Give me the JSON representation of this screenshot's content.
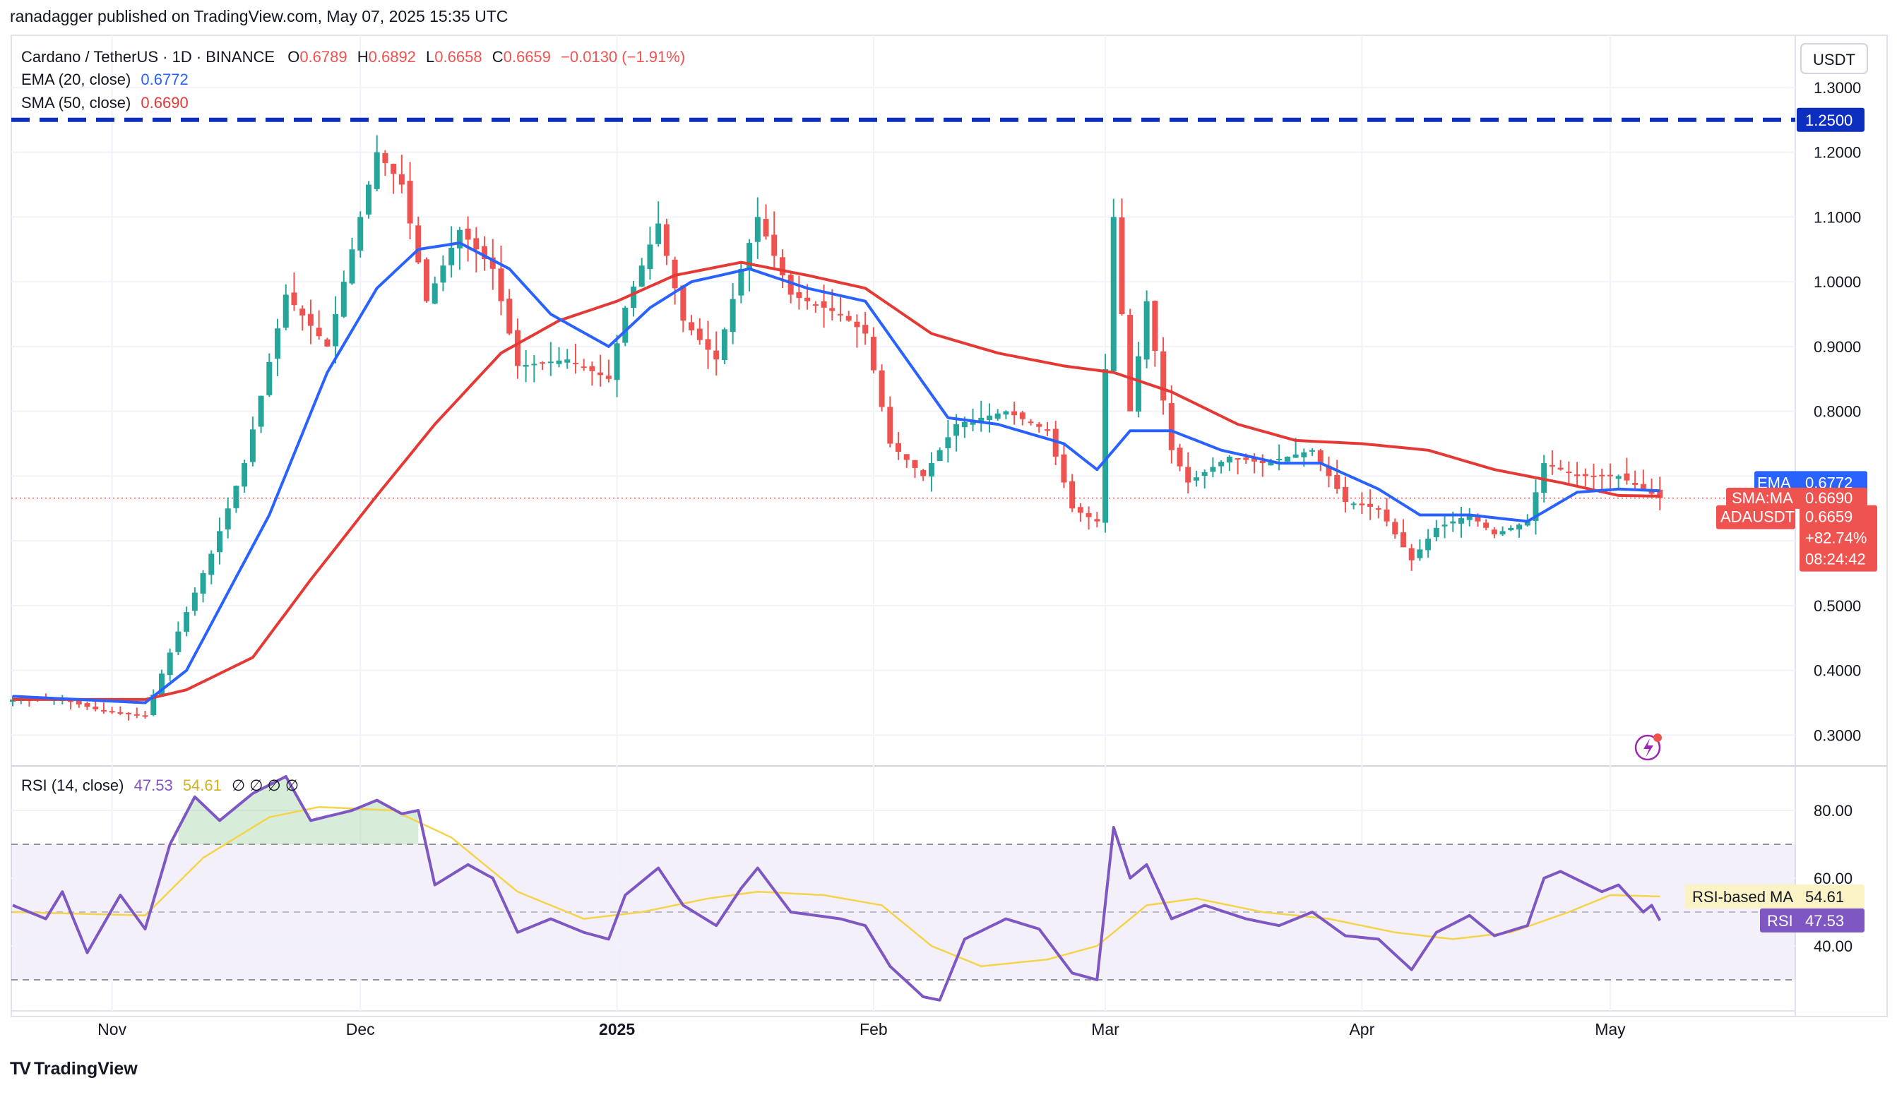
{
  "header": {
    "publisher_line": "ranadagger published on TradingView.com, May 07, 2025 15:35 UTC"
  },
  "legend": {
    "symbol": "Cardano / TetherUS · 1D · BINANCE",
    "o_label": "O",
    "o_val": "0.6789",
    "h_label": "H",
    "h_val": "0.6892",
    "l_label": "L",
    "l_val": "0.6658",
    "c_label": "C",
    "c_val": "0.6659",
    "change": "−0.0130 (−1.91%)",
    "ema_label": "EMA (20, close)",
    "ema_val": "0.6772",
    "sma_label": "SMA (50, close)",
    "sma_val": "0.6690",
    "rsi_label": "RSI (14, close)",
    "rsi_val": "47.53",
    "rsi_ma_val": "54.61",
    "rsi_extra": "∅ ∅ ∅ ∅"
  },
  "price_axis": {
    "currency": "USDT",
    "ticks": [
      "1.3000",
      "1.2000",
      "1.1000",
      "1.0000",
      "0.9000",
      "0.8000",
      "0.5000",
      "0.4000",
      "0.3000"
    ]
  },
  "rsi_axis": {
    "ticks": [
      "80.00",
      "60.00",
      "40.00"
    ]
  },
  "time_axis": {
    "labels": [
      "Nov",
      "Dec",
      "2025",
      "Feb",
      "Mar",
      "Apr",
      "May"
    ]
  },
  "badges": {
    "level": "1.2500",
    "ema_name": "EMA",
    "ema_val": "0.6772",
    "sma_name": "SMA:MA",
    "sma_val": "0.6690",
    "pair_name": "ADAUSDT",
    "pair_val": "0.6659",
    "pct": "+82.74%",
    "countdown": "08:24:42",
    "rsi_ma_name": "RSI-based MA",
    "rsi_ma_val": "54.61",
    "rsi_name": "RSI",
    "rsi_val": "47.53"
  },
  "footer": {
    "brand": "TradingView"
  },
  "colors": {
    "ema": "#2962ff",
    "sma": "#e53935",
    "up": "#26a69a",
    "down": "#ef5350",
    "rsi": "#7e57c2",
    "rsi_ma": "#f5d34a",
    "level": "#0d2fbf",
    "text": "#131722"
  },
  "chart_data": [
    {
      "type": "candlestick",
      "title": "Cardano / TetherUS · 1D · BINANCE",
      "ylabel": "USDT",
      "ylim": [
        0.26,
        1.33
      ],
      "horizontal_line": 1.25,
      "x_labels": [
        "Nov",
        "Dec",
        "2025",
        "Feb",
        "Mar",
        "Apr",
        "May"
      ],
      "anchors": [
        {
          "date": "Oct-20",
          "price": 0.355
        },
        {
          "date": "Oct-26",
          "price": 0.355
        },
        {
          "date": "Oct-30",
          "price": 0.34
        },
        {
          "date": "Nov-05",
          "price": 0.33
        },
        {
          "date": "Nov-09",
          "price": 0.46
        },
        {
          "date": "Nov-13",
          "price": 0.58
        },
        {
          "date": "Nov-17",
          "price": 0.72
        },
        {
          "date": "Nov-22",
          "price": 0.98
        },
        {
          "date": "Nov-27",
          "price": 0.9
        },
        {
          "date": "Dec-03",
          "price": 1.2
        },
        {
          "date": "Dec-06",
          "price": 1.15
        },
        {
          "date": "Dec-09",
          "price": 0.97
        },
        {
          "date": "Dec-13",
          "price": 1.08
        },
        {
          "date": "Dec-17",
          "price": 1.02
        },
        {
          "date": "Dec-20",
          "price": 0.87
        },
        {
          "date": "Dec-26",
          "price": 0.88
        },
        {
          "date": "Dec-31",
          "price": 0.85
        },
        {
          "date": "Jan-02",
          "price": 0.96
        },
        {
          "date": "Jan-06",
          "price": 1.09
        },
        {
          "date": "Jan-09",
          "price": 0.94
        },
        {
          "date": "Jan-13",
          "price": 0.88
        },
        {
          "date": "Jan-16",
          "price": 1.02
        },
        {
          "date": "Jan-18",
          "price": 1.1
        },
        {
          "date": "Jan-22",
          "price": 0.98
        },
        {
          "date": "Jan-28",
          "price": 0.95
        },
        {
          "date": "Jan-31",
          "price": 0.92
        },
        {
          "date": "Feb-03",
          "price": 0.75
        },
        {
          "date": "Feb-07",
          "price": 0.7
        },
        {
          "date": "Feb-11",
          "price": 0.78
        },
        {
          "date": "Feb-17",
          "price": 0.8
        },
        {
          "date": "Feb-22",
          "price": 0.77
        },
        {
          "date": "Feb-25",
          "price": 0.65
        },
        {
          "date": "Feb-28",
          "price": 0.63
        },
        {
          "date": "Mar-02",
          "price": 1.1
        },
        {
          "date": "Mar-04",
          "price": 0.8
        },
        {
          "date": "Mar-06",
          "price": 0.97
        },
        {
          "date": "Mar-09",
          "price": 0.74
        },
        {
          "date": "Mar-11",
          "price": 0.69
        },
        {
          "date": "Mar-16",
          "price": 0.73
        },
        {
          "date": "Mar-20",
          "price": 0.72
        },
        {
          "date": "Mar-26",
          "price": 0.74
        },
        {
          "date": "Mar-30",
          "price": 0.66
        },
        {
          "date": "Apr-03",
          "price": 0.65
        },
        {
          "date": "Apr-07",
          "price": 0.57
        },
        {
          "date": "Apr-10",
          "price": 0.62
        },
        {
          "date": "Apr-14",
          "price": 0.64
        },
        {
          "date": "Apr-17",
          "price": 0.61
        },
        {
          "date": "Apr-21",
          "price": 0.63
        },
        {
          "date": "Apr-23",
          "price": 0.72
        },
        {
          "date": "Apr-27",
          "price": 0.7
        },
        {
          "date": "May-02",
          "price": 0.7
        },
        {
          "date": "May-07",
          "price": 0.6659
        }
      ],
      "ema20_anchors": [
        {
          "date": "Oct-20",
          "price": 0.36
        },
        {
          "date": "Nov-05",
          "price": 0.35
        },
        {
          "date": "Nov-10",
          "price": 0.4
        },
        {
          "date": "Nov-15",
          "price": 0.52
        },
        {
          "date": "Nov-20",
          "price": 0.64
        },
        {
          "date": "Nov-27",
          "price": 0.86
        },
        {
          "date": "Dec-03",
          "price": 0.99
        },
        {
          "date": "Dec-08",
          "price": 1.05
        },
        {
          "date": "Dec-13",
          "price": 1.06
        },
        {
          "date": "Dec-19",
          "price": 1.02
        },
        {
          "date": "Dec-24",
          "price": 0.95
        },
        {
          "date": "Dec-31",
          "price": 0.9
        },
        {
          "date": "Jan-05",
          "price": 0.96
        },
        {
          "date": "Jan-10",
          "price": 1.0
        },
        {
          "date": "Jan-17",
          "price": 1.02
        },
        {
          "date": "Jan-24",
          "price": 0.99
        },
        {
          "date": "Jan-31",
          "price": 0.97
        },
        {
          "date": "Feb-05",
          "price": 0.88
        },
        {
          "date": "Feb-10",
          "price": 0.79
        },
        {
          "date": "Feb-16",
          "price": 0.78
        },
        {
          "date": "Feb-24",
          "price": 0.75
        },
        {
          "date": "Feb-28",
          "price": 0.71
        },
        {
          "date": "Mar-04",
          "price": 0.77
        },
        {
          "date": "Mar-09",
          "price": 0.77
        },
        {
          "date": "Mar-15",
          "price": 0.74
        },
        {
          "date": "Mar-22",
          "price": 0.72
        },
        {
          "date": "Mar-27",
          "price": 0.72
        },
        {
          "date": "Apr-03",
          "price": 0.68
        },
        {
          "date": "Apr-08",
          "price": 0.64
        },
        {
          "date": "Apr-14",
          "price": 0.64
        },
        {
          "date": "Apr-21",
          "price": 0.63
        },
        {
          "date": "Apr-27",
          "price": 0.675
        },
        {
          "date": "May-02",
          "price": 0.68
        },
        {
          "date": "May-07",
          "price": 0.6772
        }
      ],
      "sma50_anchors": [
        {
          "date": "Oct-20",
          "price": 0.355
        },
        {
          "date": "Nov-05",
          "price": 0.355
        },
        {
          "date": "Nov-10",
          "price": 0.37
        },
        {
          "date": "Nov-18",
          "price": 0.42
        },
        {
          "date": "Nov-25",
          "price": 0.54
        },
        {
          "date": "Dec-03",
          "price": 0.67
        },
        {
          "date": "Dec-10",
          "price": 0.78
        },
        {
          "date": "Dec-18",
          "price": 0.89
        },
        {
          "date": "Dec-25",
          "price": 0.94
        },
        {
          "date": "Jan-01",
          "price": 0.97
        },
        {
          "date": "Jan-08",
          "price": 1.01
        },
        {
          "date": "Jan-16",
          "price": 1.03
        },
        {
          "date": "Jan-24",
          "price": 1.01
        },
        {
          "date": "Jan-31",
          "price": 0.99
        },
        {
          "date": "Feb-08",
          "price": 0.92
        },
        {
          "date": "Feb-16",
          "price": 0.89
        },
        {
          "date": "Feb-24",
          "price": 0.87
        },
        {
          "date": "Mar-02",
          "price": 0.86
        },
        {
          "date": "Mar-09",
          "price": 0.83
        },
        {
          "date": "Mar-17",
          "price": 0.78
        },
        {
          "date": "Mar-24",
          "price": 0.755
        },
        {
          "date": "Apr-01",
          "price": 0.75
        },
        {
          "date": "Apr-09",
          "price": 0.74
        },
        {
          "date": "Apr-17",
          "price": 0.71
        },
        {
          "date": "Apr-25",
          "price": 0.69
        },
        {
          "date": "May-02",
          "price": 0.67
        },
        {
          "date": "May-07",
          "price": 0.669
        }
      ],
      "last": {
        "open": 0.6789,
        "high": 0.6892,
        "low": 0.6658,
        "close": 0.6659
      }
    },
    {
      "type": "line",
      "title": "RSI (14, close)",
      "ylim": [
        20,
        90
      ],
      "bands": [
        30,
        50,
        70
      ],
      "rsi_anchors": [
        {
          "date": "Oct-20",
          "rsi": 52
        },
        {
          "date": "Oct-24",
          "rsi": 48
        },
        {
          "date": "Oct-26",
          "rsi": 56
        },
        {
          "date": "Oct-29",
          "rsi": 38
        },
        {
          "date": "Nov-02",
          "rsi": 55
        },
        {
          "date": "Nov-05",
          "rsi": 45
        },
        {
          "date": "Nov-08",
          "rsi": 70
        },
        {
          "date": "Nov-11",
          "rsi": 84
        },
        {
          "date": "Nov-14",
          "rsi": 77
        },
        {
          "date": "Nov-18",
          "rsi": 85
        },
        {
          "date": "Nov-22",
          "rsi": 90
        },
        {
          "date": "Nov-25",
          "rsi": 77
        },
        {
          "date": "Nov-30",
          "rsi": 80
        },
        {
          "date": "Dec-03",
          "rsi": 83
        },
        {
          "date": "Dec-06",
          "rsi": 79
        },
        {
          "date": "Dec-08",
          "rsi": 80
        },
        {
          "date": "Dec-10",
          "rsi": 58
        },
        {
          "date": "Dec-14",
          "rsi": 64
        },
        {
          "date": "Dec-17",
          "rsi": 60
        },
        {
          "date": "Dec-20",
          "rsi": 44
        },
        {
          "date": "Dec-24",
          "rsi": 48
        },
        {
          "date": "Dec-28",
          "rsi": 44
        },
        {
          "date": "Dec-31",
          "rsi": 42
        },
        {
          "date": "Jan-02",
          "rsi": 55
        },
        {
          "date": "Jan-06",
          "rsi": 63
        },
        {
          "date": "Jan-09",
          "rsi": 52
        },
        {
          "date": "Jan-13",
          "rsi": 46
        },
        {
          "date": "Jan-16",
          "rsi": 57
        },
        {
          "date": "Jan-18",
          "rsi": 63
        },
        {
          "date": "Jan-22",
          "rsi": 50
        },
        {
          "date": "Jan-28",
          "rsi": 48
        },
        {
          "date": "Jan-31",
          "rsi": 46
        },
        {
          "date": "Feb-03",
          "rsi": 34
        },
        {
          "date": "Feb-07",
          "rsi": 25
        },
        {
          "date": "Feb-09",
          "rsi": 24
        },
        {
          "date": "Feb-12",
          "rsi": 42
        },
        {
          "date": "Feb-17",
          "rsi": 48
        },
        {
          "date": "Feb-21",
          "rsi": 45
        },
        {
          "date": "Feb-25",
          "rsi": 32
        },
        {
          "date": "Feb-28",
          "rsi": 30
        },
        {
          "date": "Mar-02",
          "rsi": 75
        },
        {
          "date": "Mar-04",
          "rsi": 60
        },
        {
          "date": "Mar-06",
          "rsi": 64
        },
        {
          "date": "Mar-09",
          "rsi": 48
        },
        {
          "date": "Mar-13",
          "rsi": 52
        },
        {
          "date": "Mar-18",
          "rsi": 48
        },
        {
          "date": "Mar-22",
          "rsi": 46
        },
        {
          "date": "Mar-26",
          "rsi": 50
        },
        {
          "date": "Mar-30",
          "rsi": 43
        },
        {
          "date": "Apr-03",
          "rsi": 42
        },
        {
          "date": "Apr-07",
          "rsi": 33
        },
        {
          "date": "Apr-10",
          "rsi": 44
        },
        {
          "date": "Apr-14",
          "rsi": 49
        },
        {
          "date": "Apr-17",
          "rsi": 43
        },
        {
          "date": "Apr-21",
          "rsi": 46
        },
        {
          "date": "Apr-23",
          "rsi": 60
        },
        {
          "date": "Apr-25",
          "rsi": 62
        },
        {
          "date": "Apr-30",
          "rsi": 56
        },
        {
          "date": "May-02",
          "rsi": 58
        },
        {
          "date": "May-05",
          "rsi": 50
        },
        {
          "date": "May-06",
          "rsi": 52
        },
        {
          "date": "May-07",
          "rsi": 47.53
        }
      ],
      "rsi_ma_anchors": [
        {
          "date": "Oct-20",
          "rsi": 50
        },
        {
          "date": "Nov-05",
          "rsi": 49
        },
        {
          "date": "Nov-12",
          "rsi": 66
        },
        {
          "date": "Nov-20",
          "rsi": 78
        },
        {
          "date": "Nov-26",
          "rsi": 81
        },
        {
          "date": "Dec-05",
          "rsi": 80
        },
        {
          "date": "Dec-12",
          "rsi": 72
        },
        {
          "date": "Dec-20",
          "rsi": 56
        },
        {
          "date": "Dec-28",
          "rsi": 48
        },
        {
          "date": "Jan-04",
          "rsi": 50
        },
        {
          "date": "Jan-12",
          "rsi": 54
        },
        {
          "date": "Jan-18",
          "rsi": 56
        },
        {
          "date": "Jan-26",
          "rsi": 55
        },
        {
          "date": "Feb-02",
          "rsi": 52
        },
        {
          "date": "Feb-08",
          "rsi": 40
        },
        {
          "date": "Feb-14",
          "rsi": 34
        },
        {
          "date": "Feb-22",
          "rsi": 36
        },
        {
          "date": "Feb-28",
          "rsi": 40
        },
        {
          "date": "Mar-06",
          "rsi": 52
        },
        {
          "date": "Mar-12",
          "rsi": 54
        },
        {
          "date": "Mar-20",
          "rsi": 50
        },
        {
          "date": "Mar-28",
          "rsi": 48
        },
        {
          "date": "Apr-05",
          "rsi": 44
        },
        {
          "date": "Apr-12",
          "rsi": 42
        },
        {
          "date": "Apr-19",
          "rsi": 44
        },
        {
          "date": "Apr-26",
          "rsi": 50
        },
        {
          "date": "May-01",
          "rsi": 55
        },
        {
          "date": "May-07",
          "rsi": 54.61
        }
      ]
    }
  ]
}
